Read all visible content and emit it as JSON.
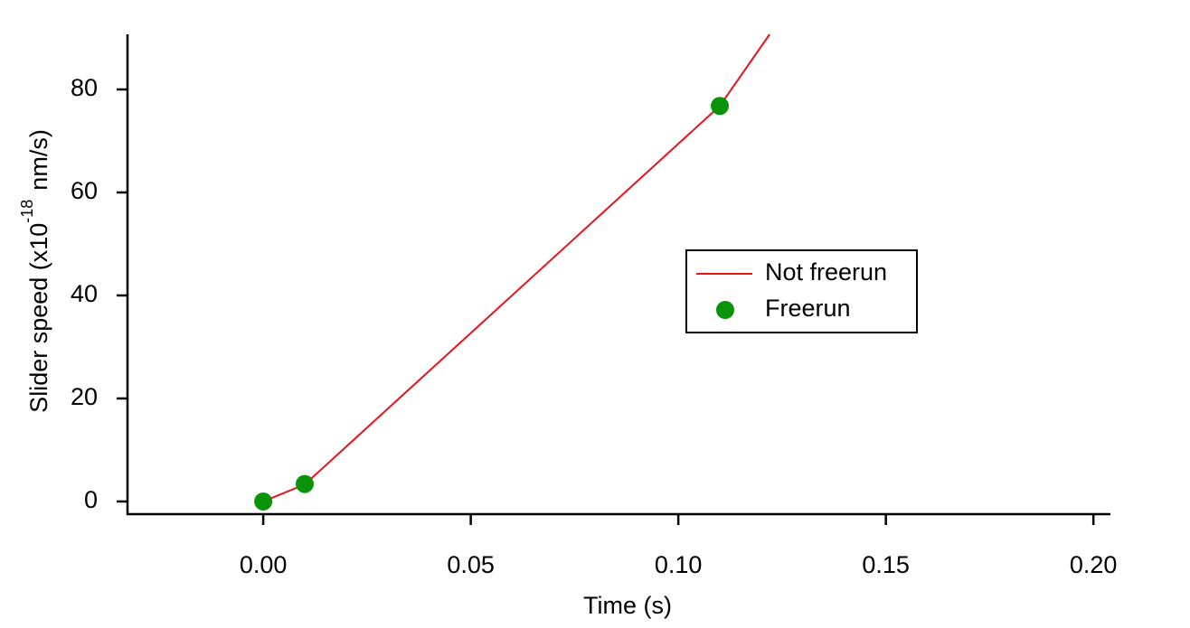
{
  "chart_data": {
    "type": "line-scatter",
    "xlabel": "Time (s)",
    "ylabel": {
      "text": "Slider speed (x10",
      "superscript": "-18",
      "suffix": "nm/s)"
    },
    "xlim": [
      -0.0327,
      0.2041
    ],
    "ylim": [
      -2.46,
      90.7
    ],
    "xticks": [
      {
        "value": 0,
        "label": "0.00"
      },
      {
        "value": 0.05,
        "label": "0.05"
      },
      {
        "value": 0.1,
        "label": "0.10"
      },
      {
        "value": 0.15,
        "label": "0.15"
      },
      {
        "value": 0.2,
        "label": "0.20"
      }
    ],
    "yticks": [
      0,
      20,
      40,
      60,
      80
    ],
    "legend": "center-right",
    "series": [
      {
        "name": "Not freerun",
        "kind": "line",
        "color": "#e8141b",
        "x": [
          0,
          0.01,
          0.11,
          0.122
        ],
        "values": [
          0,
          3.3,
          76.8,
          90.7
        ]
      },
      {
        "name": "Freerun",
        "kind": "scatter",
        "color": "#0a9208",
        "x": [
          0,
          0.01,
          0.11
        ],
        "values": [
          0,
          3.4,
          76.8
        ]
      }
    ]
  }
}
